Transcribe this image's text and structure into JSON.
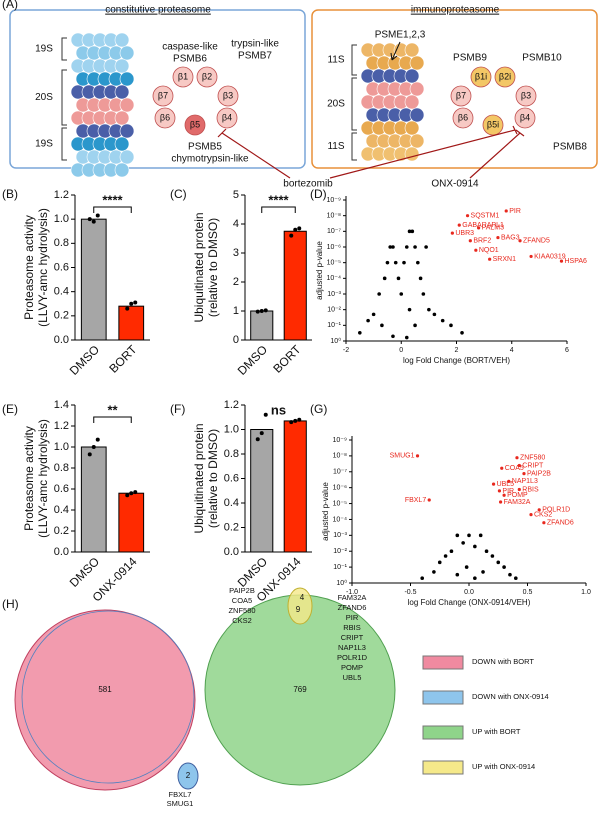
{
  "panel_a": {
    "letter": "(A)",
    "constitutive": {
      "title": "constitutive proteasome",
      "layers": [
        "19S",
        "20S",
        "19S"
      ],
      "subunits": [
        "β1",
        "β2",
        "β7",
        "β3",
        "β6",
        "β4",
        "β5"
      ],
      "labels": [
        "caspase-like",
        "PSMB6",
        "trypsin-like",
        "PSMB7",
        "PSMB5",
        "chymotrypsin-like"
      ]
    },
    "immuno": {
      "title": "immunoproteasome",
      "cap": "PSME1,2,3",
      "layers": [
        "11S",
        "20S",
        "11S"
      ],
      "subunits": [
        "β1i",
        "β2i",
        "β7",
        "β3",
        "β6",
        "β4",
        "β5i"
      ],
      "labels": [
        "PSMB9",
        "PSMB10",
        "PSMB8"
      ]
    },
    "inhibitors": [
      "bortezomib",
      "ONX-0914"
    ]
  },
  "chart_data": [
    {
      "type": "bar",
      "panel": "(B)",
      "ylabel": [
        "Proteasome activity",
        "(LLVY-amc hydrolysis)"
      ],
      "categories": [
        "DMSO",
        "BORT"
      ],
      "values": [
        1.0,
        0.28
      ],
      "points": [
        [
          1.0,
          0.98,
          1.03
        ],
        [
          0.26,
          0.3,
          0.31
        ]
      ],
      "colors": [
        "#a6a6a6",
        "#ff2a00"
      ],
      "ylim": [
        0,
        1.2
      ],
      "yticks": [
        {
          "value": 0,
          "label": "0.0"
        },
        0.2,
        0.4,
        0.6,
        0.8,
        {
          "value": 1,
          "label": "1.0"
        },
        1.2
      ],
      "significance": "****",
      "bracket": true
    },
    {
      "type": "bar",
      "panel": "(C)",
      "ylabel": [
        "Ubiquitinated protein",
        "(relative to DMSO)"
      ],
      "categories": [
        "DMSO",
        "BORT"
      ],
      "values": [
        1.0,
        3.75
      ],
      "points": [
        [
          0.98,
          1.0,
          1.02
        ],
        [
          3.6,
          3.8,
          3.85
        ]
      ],
      "colors": [
        "#a6a6a6",
        "#ff2a00"
      ],
      "ylim": [
        0,
        5
      ],
      "yticks": [
        0,
        1,
        2,
        3,
        4,
        5
      ],
      "significance": "****",
      "bracket": true
    },
    {
      "type": "scatter",
      "panel": "(D)",
      "ylabel": "adjusted p-value",
      "xlabel": "log Fold Change (BORT/VEH)",
      "xlim": [
        -2,
        6
      ],
      "xticks": [
        -2,
        0,
        2,
        4,
        6
      ],
      "log_y": true,
      "ylim": [
        1,
        1e-09
      ],
      "yticks": [
        {
          "value": 1e-09,
          "label": "10⁻⁹"
        },
        {
          "value": 1e-08,
          "label": "10⁻⁸"
        },
        {
          "value": 1e-07,
          "label": "10⁻⁷"
        },
        {
          "value": 1e-06,
          "label": "10⁻⁶"
        },
        {
          "value": 1e-05,
          "label": "10⁻⁵"
        },
        {
          "value": 0.0001,
          "label": "10⁻⁴"
        },
        {
          "value": 0.001,
          "label": "10⁻³"
        },
        {
          "value": 0.01,
          "label": "10⁻²"
        },
        {
          "value": 0.1,
          "label": "10⁻¹"
        },
        {
          "value": 1,
          "label": "10⁰"
        }
      ],
      "points": {
        "color": "#000000",
        "x": [
          -1.5,
          -1.2,
          -1,
          -0.8,
          -0.6,
          -0.5,
          -0.4,
          -0.3,
          -0.2,
          -0.1,
          0,
          0.1,
          0.2,
          0.3,
          0.4,
          0.5,
          0.6,
          0.7,
          0.8,
          1,
          1.2,
          1.5,
          1.8,
          2.2,
          -0.3,
          0.2,
          0.5,
          0.3,
          -0.7,
          0.9
        ],
        "y": [
          0.3,
          0.05,
          0.02,
          0.001,
          0.0001,
          1e-05,
          1e-06,
          1e-06,
          1e-05,
          0.0001,
          0.001,
          1e-05,
          1e-06,
          1e-07,
          1e-07,
          1e-06,
          1e-05,
          0.0001,
          0.001,
          0.01,
          0.02,
          0.05,
          0.1,
          0.3,
          0.5,
          0.6,
          0.1,
          0.01,
          0.1,
          1e-06
        ]
      },
      "labeled": {
        "color": "#e8281e",
        "labels": [
          "PIR",
          "SQSTM1",
          "GABARAPL1",
          "PALM3",
          "UBR3",
          "BRF2",
          "BAG3",
          "ZFAND5",
          "NQO1",
          "KIAA0319",
          "HSPA6",
          "SRXN1"
        ],
        "x": [
          3.8,
          2.4,
          2.1,
          2.8,
          1.85,
          2.5,
          3.5,
          4.3,
          2.7,
          4.7,
          5.8,
          3.2
        ],
        "y": [
          5e-09,
          1e-08,
          4e-08,
          6e-08,
          1.3e-07,
          4e-07,
          2.5e-07,
          4e-07,
          1.6e-06,
          4e-06,
          8e-06,
          6e-06
        ]
      }
    },
    {
      "type": "bar",
      "panel": "(E)",
      "ylabel": [
        "Proteasome activity",
        "(LLVY-amc hydrolysis)"
      ],
      "categories": [
        "DMSO",
        "ONX-0914"
      ],
      "values": [
        1.0,
        0.56
      ],
      "points": [
        [
          0.93,
          1.0,
          1.07
        ],
        [
          0.54,
          0.56,
          0.57
        ]
      ],
      "colors": [
        "#a6a6a6",
        "#ff2a00"
      ],
      "ylim": [
        0,
        1.4
      ],
      "yticks": [
        {
          "value": 0,
          "label": "0.0"
        },
        0.2,
        0.4,
        0.6,
        0.8,
        {
          "value": 1,
          "label": "1.0"
        },
        1.2,
        1.4
      ],
      "significance": "**",
      "bracket": true
    },
    {
      "type": "bar",
      "panel": "(F)",
      "ylabel": [
        "Ubiquitinated protein",
        "(relative to DMSO)"
      ],
      "categories": [
        "DMSO",
        "ONX-0914"
      ],
      "values": [
        1.0,
        1.07
      ],
      "points": [
        [
          0.92,
          0.97,
          1.12
        ],
        [
          1.06,
          1.07,
          1.08
        ]
      ],
      "colors": [
        "#a6a6a6",
        "#ff2a00"
      ],
      "ylim": [
        0,
        1.2
      ],
      "yticks": [
        {
          "value": 0,
          "label": "0.0"
        },
        0.2,
        0.4,
        0.6,
        0.8,
        {
          "value": 1,
          "label": "1.0"
        },
        1.2
      ],
      "significance": "ns",
      "bracket": false
    },
    {
      "type": "scatter",
      "panel": "(G)",
      "ylabel": "adjusted p-value",
      "xlabel": "log Fold Change (ONX-0914/VEH)",
      "xlim": [
        -1,
        1
      ],
      "xticks": [
        {
          "value": -1,
          "label": "-1.0"
        },
        -0.5,
        {
          "value": 0,
          "label": "0.0"
        },
        0.5,
        {
          "value": 1,
          "label": "1.0"
        }
      ],
      "log_y": true,
      "ylim": [
        1,
        1e-09
      ],
      "yticks": [
        {
          "value": 1e-09,
          "label": "10⁻⁹"
        },
        {
          "value": 1e-08,
          "label": "10⁻⁸"
        },
        {
          "value": 1e-07,
          "label": "10⁻⁷"
        },
        {
          "value": 1e-06,
          "label": "10⁻⁶"
        },
        {
          "value": 1e-05,
          "label": "10⁻⁵"
        },
        {
          "value": 0.0001,
          "label": "10⁻⁴"
        },
        {
          "value": 0.001,
          "label": "10⁻³"
        },
        {
          "value": 0.01,
          "label": "10⁻²"
        },
        {
          "value": 0.1,
          "label": "10⁻¹"
        },
        {
          "value": 1,
          "label": "10⁰"
        }
      ],
      "points": {
        "color": "#000000",
        "x": [
          -0.4,
          -0.3,
          -0.25,
          -0.2,
          -0.15,
          -0.1,
          -0.05,
          0,
          0.05,
          0.1,
          0.15,
          0.2,
          0.25,
          0.3,
          0.35,
          0.4,
          -0.1,
          0.05,
          0.12,
          -0.02
        ],
        "y": [
          0.5,
          0.2,
          0.05,
          0.02,
          0.01,
          0.001,
          0.003,
          0.001,
          0.005,
          0.001,
          0.01,
          0.02,
          0.05,
          0.1,
          0.3,
          0.5,
          0.3,
          0.5,
          0.2,
          0.1
        ]
      },
      "labeled": {
        "color": "#e8281e",
        "labels": [
          "SMUG1",
          "ZNF580",
          "COA5",
          "CRIPT",
          "PAIP2B",
          "NAP1L3",
          "UBL5",
          "RBIS",
          "PIR",
          "POMP",
          "FAM32A",
          "FBXL7",
          "POLR1D",
          "CKS2",
          "ZFAND6"
        ],
        "x": [
          -0.44,
          0.41,
          0.28,
          0.43,
          0.47,
          0.34,
          0.21,
          0.43,
          0.26,
          0.3,
          0.27,
          -0.34,
          0.6,
          0.53,
          0.64
        ],
        "y": [
          1e-08,
          1.3e-08,
          6e-08,
          4e-08,
          1.3e-07,
          4e-07,
          6e-07,
          1.3e-06,
          1.6e-06,
          3e-06,
          8e-06,
          6e-06,
          2.5e-05,
          5e-05,
          0.00016
        ]
      }
    }
  ],
  "panel_h": {
    "letter": "(H)",
    "counts": [
      "581",
      "769",
      "2",
      "4",
      "9"
    ],
    "genes_top_left": [
      "PAIP2B",
      "COA5",
      "ZNF580",
      "CKS2"
    ],
    "genes_right": [
      "FAM32A",
      "ZFAND6",
      "PIR",
      "RBIS",
      "CRIPT",
      "NAP1L3",
      "POLR1D",
      "POMP",
      "UBL5"
    ],
    "genes_bottom": [
      "FBXL7",
      "SMUG1"
    ],
    "legend": [
      {
        "label": "DOWN with BORT",
        "color": "#f08aa0"
      },
      {
        "label": "DOWN with ONX-0914",
        "color": "#8ec5ec"
      },
      {
        "label": "UP with BORT",
        "color": "#8fd48a"
      },
      {
        "label": "UP with ONX-0914",
        "color": "#f5e98a"
      }
    ]
  }
}
